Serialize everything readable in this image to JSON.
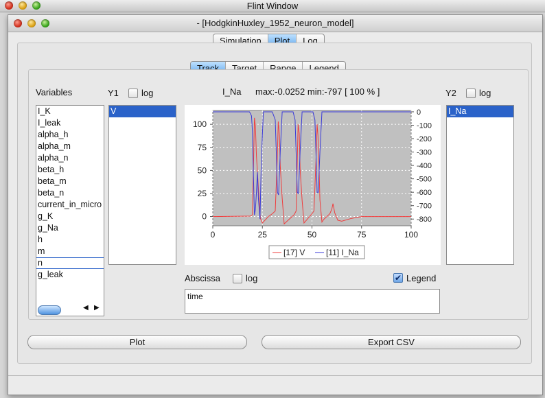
{
  "outer_window": {
    "title": "Flint Window"
  },
  "window": {
    "title": "- [HodgkinHuxley_1952_neuron_model]"
  },
  "main_tabs": [
    {
      "label": "Simulation",
      "selected": false
    },
    {
      "label": "Plot",
      "selected": true
    },
    {
      "label": "Log",
      "selected": false
    }
  ],
  "sub_tabs": [
    {
      "label": "Track",
      "selected": true
    },
    {
      "label": "Target",
      "selected": false
    },
    {
      "label": "Range",
      "selected": false
    },
    {
      "label": "Legend",
      "selected": false
    }
  ],
  "variables": {
    "label": "Variables",
    "items": [
      "I_K",
      "I_leak",
      "alpha_h",
      "alpha_m",
      "alpha_n",
      "beta_h",
      "beta_m",
      "beta_n",
      "current_in_micro",
      "g_K",
      "g_Na",
      "h",
      "m",
      "n",
      "g_leak"
    ],
    "focused_item": "n"
  },
  "y1": {
    "label": "Y1",
    "log_label": "log",
    "log_checked": false,
    "items": [
      "V"
    ],
    "selected": "V"
  },
  "y2": {
    "label": "Y2",
    "log_label": "log",
    "log_checked": false,
    "items": [
      "I_Na"
    ],
    "selected": "I_Na"
  },
  "plot_info": {
    "variable": "I_Na",
    "stats": "max:-0.0252 min:-797 [ 100 % ]"
  },
  "abscissa": {
    "label": "Abscissa",
    "log_label": "log",
    "log_checked": false,
    "value": "time"
  },
  "legend_toggle": {
    "label": "Legend",
    "checked": true
  },
  "buttons": {
    "plot": "Plot",
    "export": "Export CSV"
  },
  "chart_data": {
    "type": "line",
    "xlim": [
      0,
      100
    ],
    "x_ticks": [
      "0",
      "25",
      "50",
      "75",
      "100"
    ],
    "y_left_lim": [
      -10,
      115
    ],
    "y_left_ticks": [
      "0",
      "25",
      "50",
      "75",
      "100"
    ],
    "y_right_lim": [
      -850,
      10
    ],
    "y_right_ticks": [
      "0",
      "-100",
      "-200",
      "-300",
      "-400",
      "-500",
      "-600",
      "-700",
      "-800"
    ],
    "grid": true,
    "legend_position": "bottom",
    "series": [
      {
        "name": "[17] V",
        "axis": "left",
        "color": "#ef3d3d",
        "x": [
          0,
          19,
          20,
          20.6,
          21,
          21.5,
          22,
          23,
          24,
          25,
          28,
          30,
          31.5,
          32.5,
          33,
          33.6,
          34,
          35,
          36,
          38,
          41,
          42,
          42.6,
          43,
          43.6,
          44,
          45,
          46,
          50,
          51,
          52,
          52.6,
          53,
          53.6,
          54,
          55,
          56,
          59,
          60,
          60.6,
          61.5,
          63,
          65,
          70,
          75,
          80,
          85,
          90,
          100
        ],
        "y": [
          0,
          0.5,
          2,
          62,
          107,
          98,
          66,
          30,
          -2,
          -7,
          0,
          3,
          6,
          62,
          103,
          88,
          55,
          20,
          -8,
          -4,
          2,
          6,
          60,
          100,
          90,
          52,
          18,
          -7,
          3,
          6,
          60,
          100,
          88,
          52,
          18,
          -6,
          -3,
          3,
          8,
          14,
          4,
          -4,
          -5,
          -2,
          0,
          0,
          0,
          0,
          0
        ]
      },
      {
        "name": "[11] I_Na",
        "axis": "right",
        "color": "#3a3ad8",
        "x": [
          0,
          18.5,
          19.5,
          20,
          20.5,
          21,
          21.5,
          22,
          22.5,
          23,
          23.8,
          24.5,
          25.5,
          30,
          31.5,
          32,
          32.6,
          33.2,
          34,
          35,
          40.5,
          41.5,
          42,
          42.6,
          43.2,
          44,
          45,
          50.5,
          51.5,
          52,
          52.6,
          53.2,
          54,
          55,
          58,
          60,
          100
        ],
        "y": [
          0,
          0,
          -30,
          -150,
          -470,
          -770,
          -730,
          -600,
          -450,
          -650,
          -800,
          -350,
          0,
          0,
          -60,
          -300,
          -600,
          -620,
          -300,
          0,
          0,
          -60,
          -300,
          -600,
          -610,
          -300,
          0,
          0,
          -60,
          -300,
          -600,
          -600,
          -300,
          0,
          0,
          0,
          0
        ]
      }
    ]
  }
}
